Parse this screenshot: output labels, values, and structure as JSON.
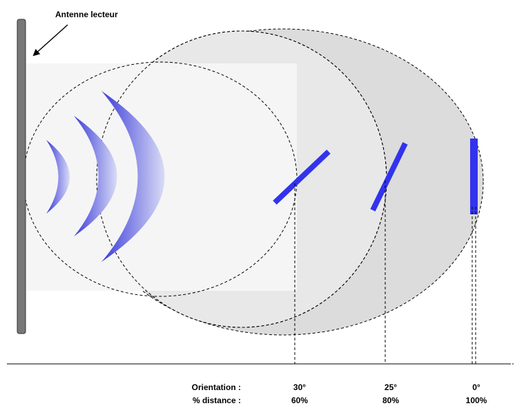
{
  "antenna_label": "Antenne lecteur",
  "row_labels": {
    "orientation": "Orientation :",
    "distance": "% distance :"
  },
  "tags": [
    {
      "orientation": "30°",
      "distance": "60%"
    },
    {
      "orientation": "25°",
      "distance": "80%"
    },
    {
      "orientation": "0°",
      "distance": "100%"
    }
  ],
  "colors": {
    "tag": "#3333ee",
    "wave": "#6a6ae8",
    "antenna": "#777777",
    "zone_outer": "#dcdcdc",
    "zone_mid": "#ebebeb",
    "zone_inner": "#f4f4f4"
  }
}
